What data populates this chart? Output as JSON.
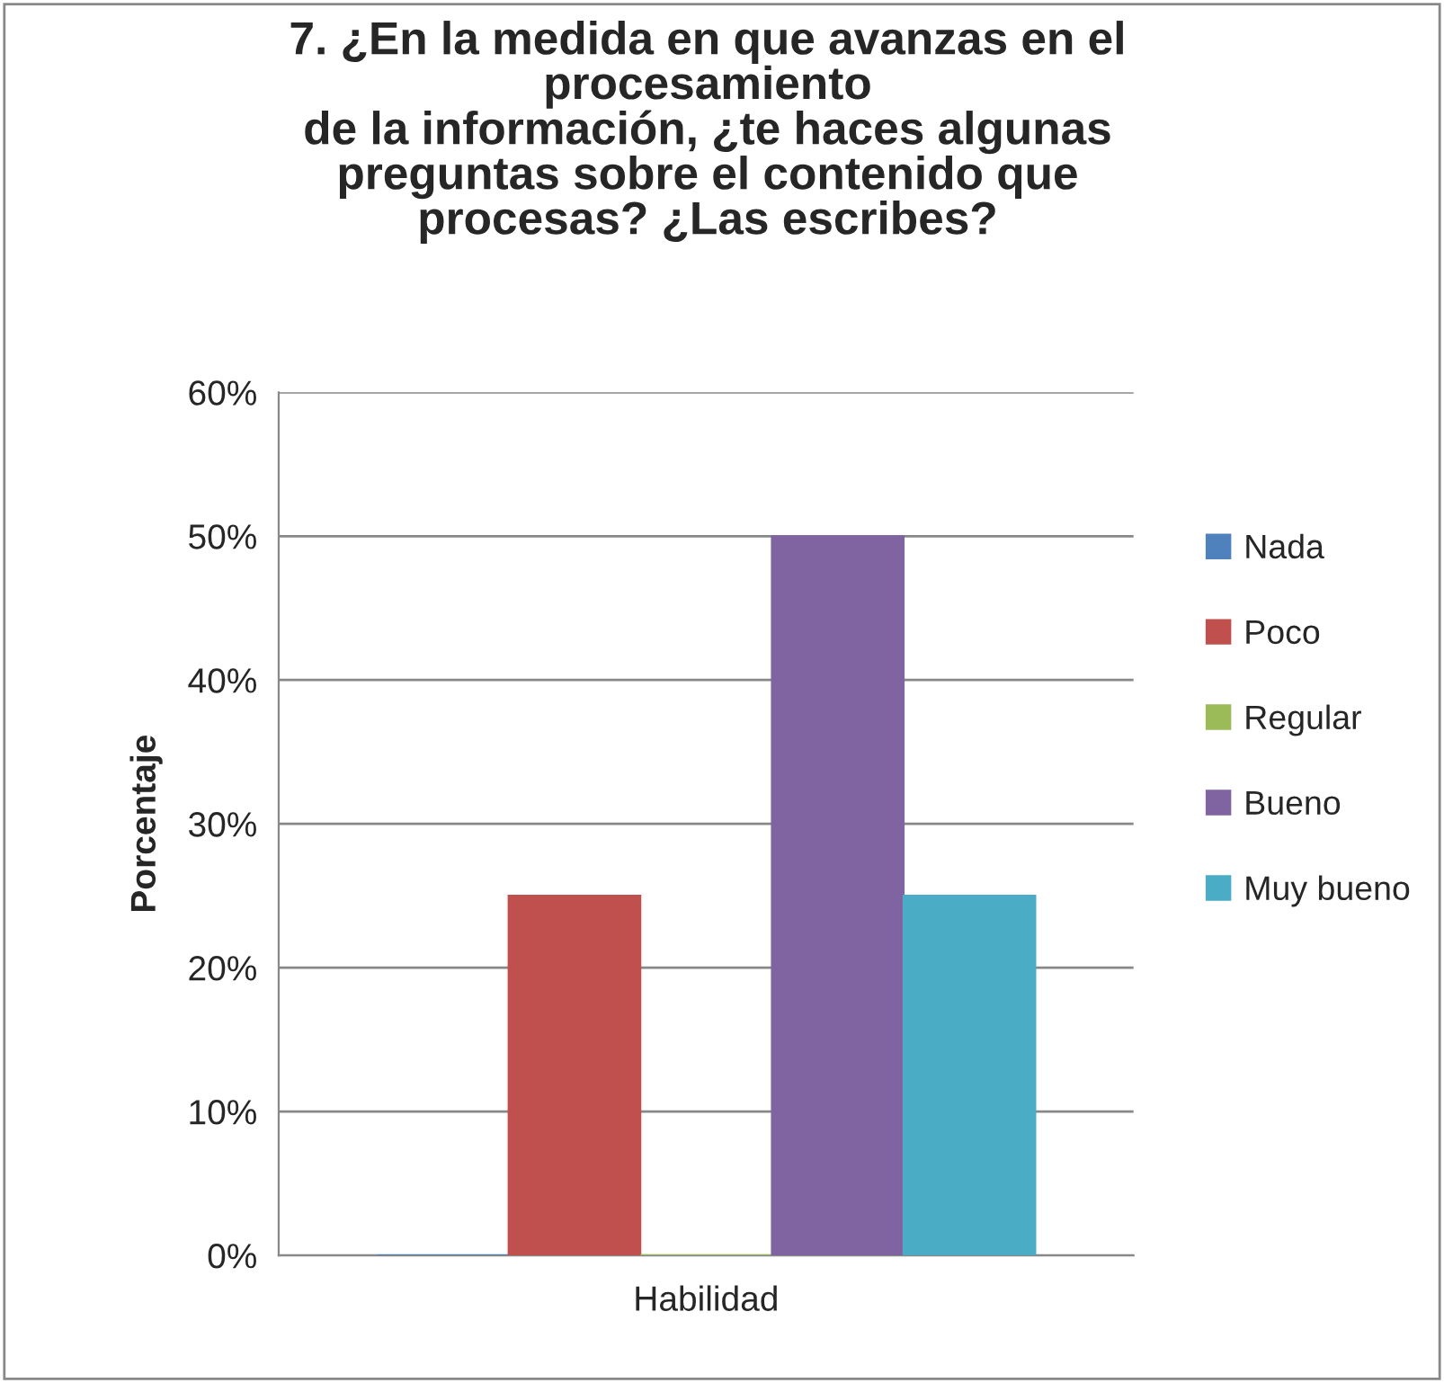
{
  "chart_data": {
    "type": "bar",
    "title": "7. ¿En la medida en que avanzas en el\nprocesamiento\nde la información, ¿te haces algunas\npreguntas sobre el contenido que\nprocesas? ¿Las escribes?",
    "ylabel": "Porcentaje",
    "categories": [
      "Habilidad"
    ],
    "series": [
      {
        "name": "Nada",
        "color": "#4f81bd",
        "values": [
          0
        ]
      },
      {
        "name": "Poco",
        "color": "#c0504d",
        "values": [
          25
        ]
      },
      {
        "name": "Regular",
        "color": "#9bbb59",
        "values": [
          0
        ]
      },
      {
        "name": "Bueno",
        "color": "#8064a2",
        "values": [
          50
        ]
      },
      {
        "name": "Muy bueno",
        "color": "#4bacc6",
        "values": [
          25
        ]
      }
    ],
    "ylim": [
      0,
      60
    ],
    "yticks": [
      {
        "value": 0,
        "label": "0%"
      },
      {
        "value": 10,
        "label": "10%"
      },
      {
        "value": 20,
        "label": "20%"
      },
      {
        "value": 30,
        "label": "30%"
      },
      {
        "value": 40,
        "label": "40%"
      },
      {
        "value": 50,
        "label": "50%"
      },
      {
        "value": 60,
        "label": "60%"
      }
    ],
    "grid": "y",
    "legend": "right"
  }
}
